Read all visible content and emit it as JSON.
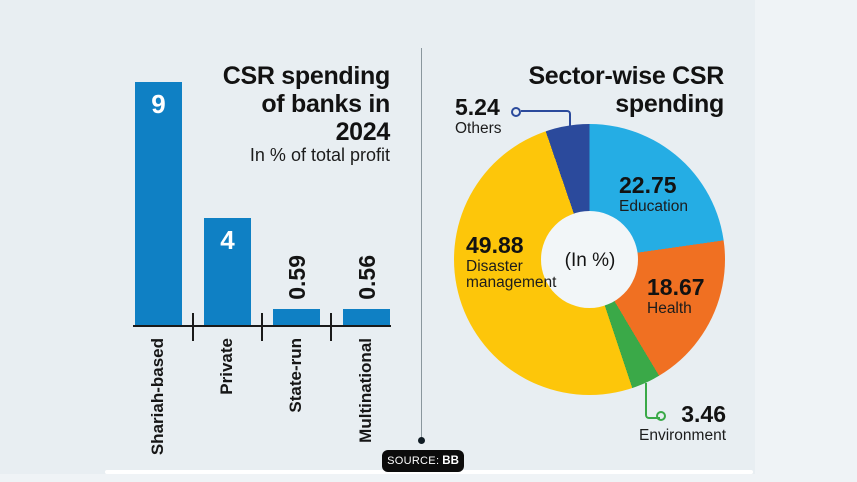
{
  "left_chart": {
    "title": "CSR spending\nof banks in\n2024",
    "subtitle": "In % of total profit"
  },
  "right_chart": {
    "title": "Sector-wise CSR\nspending",
    "center_label": "(In %)"
  },
  "source": {
    "label": "SOURCE:",
    "value": "BB"
  },
  "chart_data": [
    {
      "type": "bar",
      "title": "CSR spending of banks in 2024",
      "subtitle": "In % of total profit",
      "unit": "% of total profit",
      "orientation": "vertical",
      "categories": [
        "Shariah-based",
        "Private",
        "State-run",
        "Multinational"
      ],
      "values": [
        9,
        4,
        0.59,
        0.56
      ],
      "bar_color": "#0f80c4",
      "value_label_color_large": "#ffffff",
      "value_label_color_small": "#141414",
      "ylim": [
        0,
        9
      ]
    },
    {
      "type": "pie",
      "donut": true,
      "title": "Sector-wise CSR spending",
      "center_label": "(In %)",
      "unit": "%",
      "start_angle_deg": 0,
      "direction": "clockwise",
      "series": [
        {
          "label": "Education",
          "value": 22.75,
          "color": "#25ade4"
        },
        {
          "label": "Health",
          "value": 18.67,
          "color": "#f07022"
        },
        {
          "label": "Environment",
          "value": 3.46,
          "color": "#3aa948"
        },
        {
          "label": "Disaster management",
          "value": 49.88,
          "color": "#fdc60a"
        },
        {
          "label": "Others",
          "value": 5.24,
          "color": "#2b4a9c"
        }
      ]
    }
  ]
}
